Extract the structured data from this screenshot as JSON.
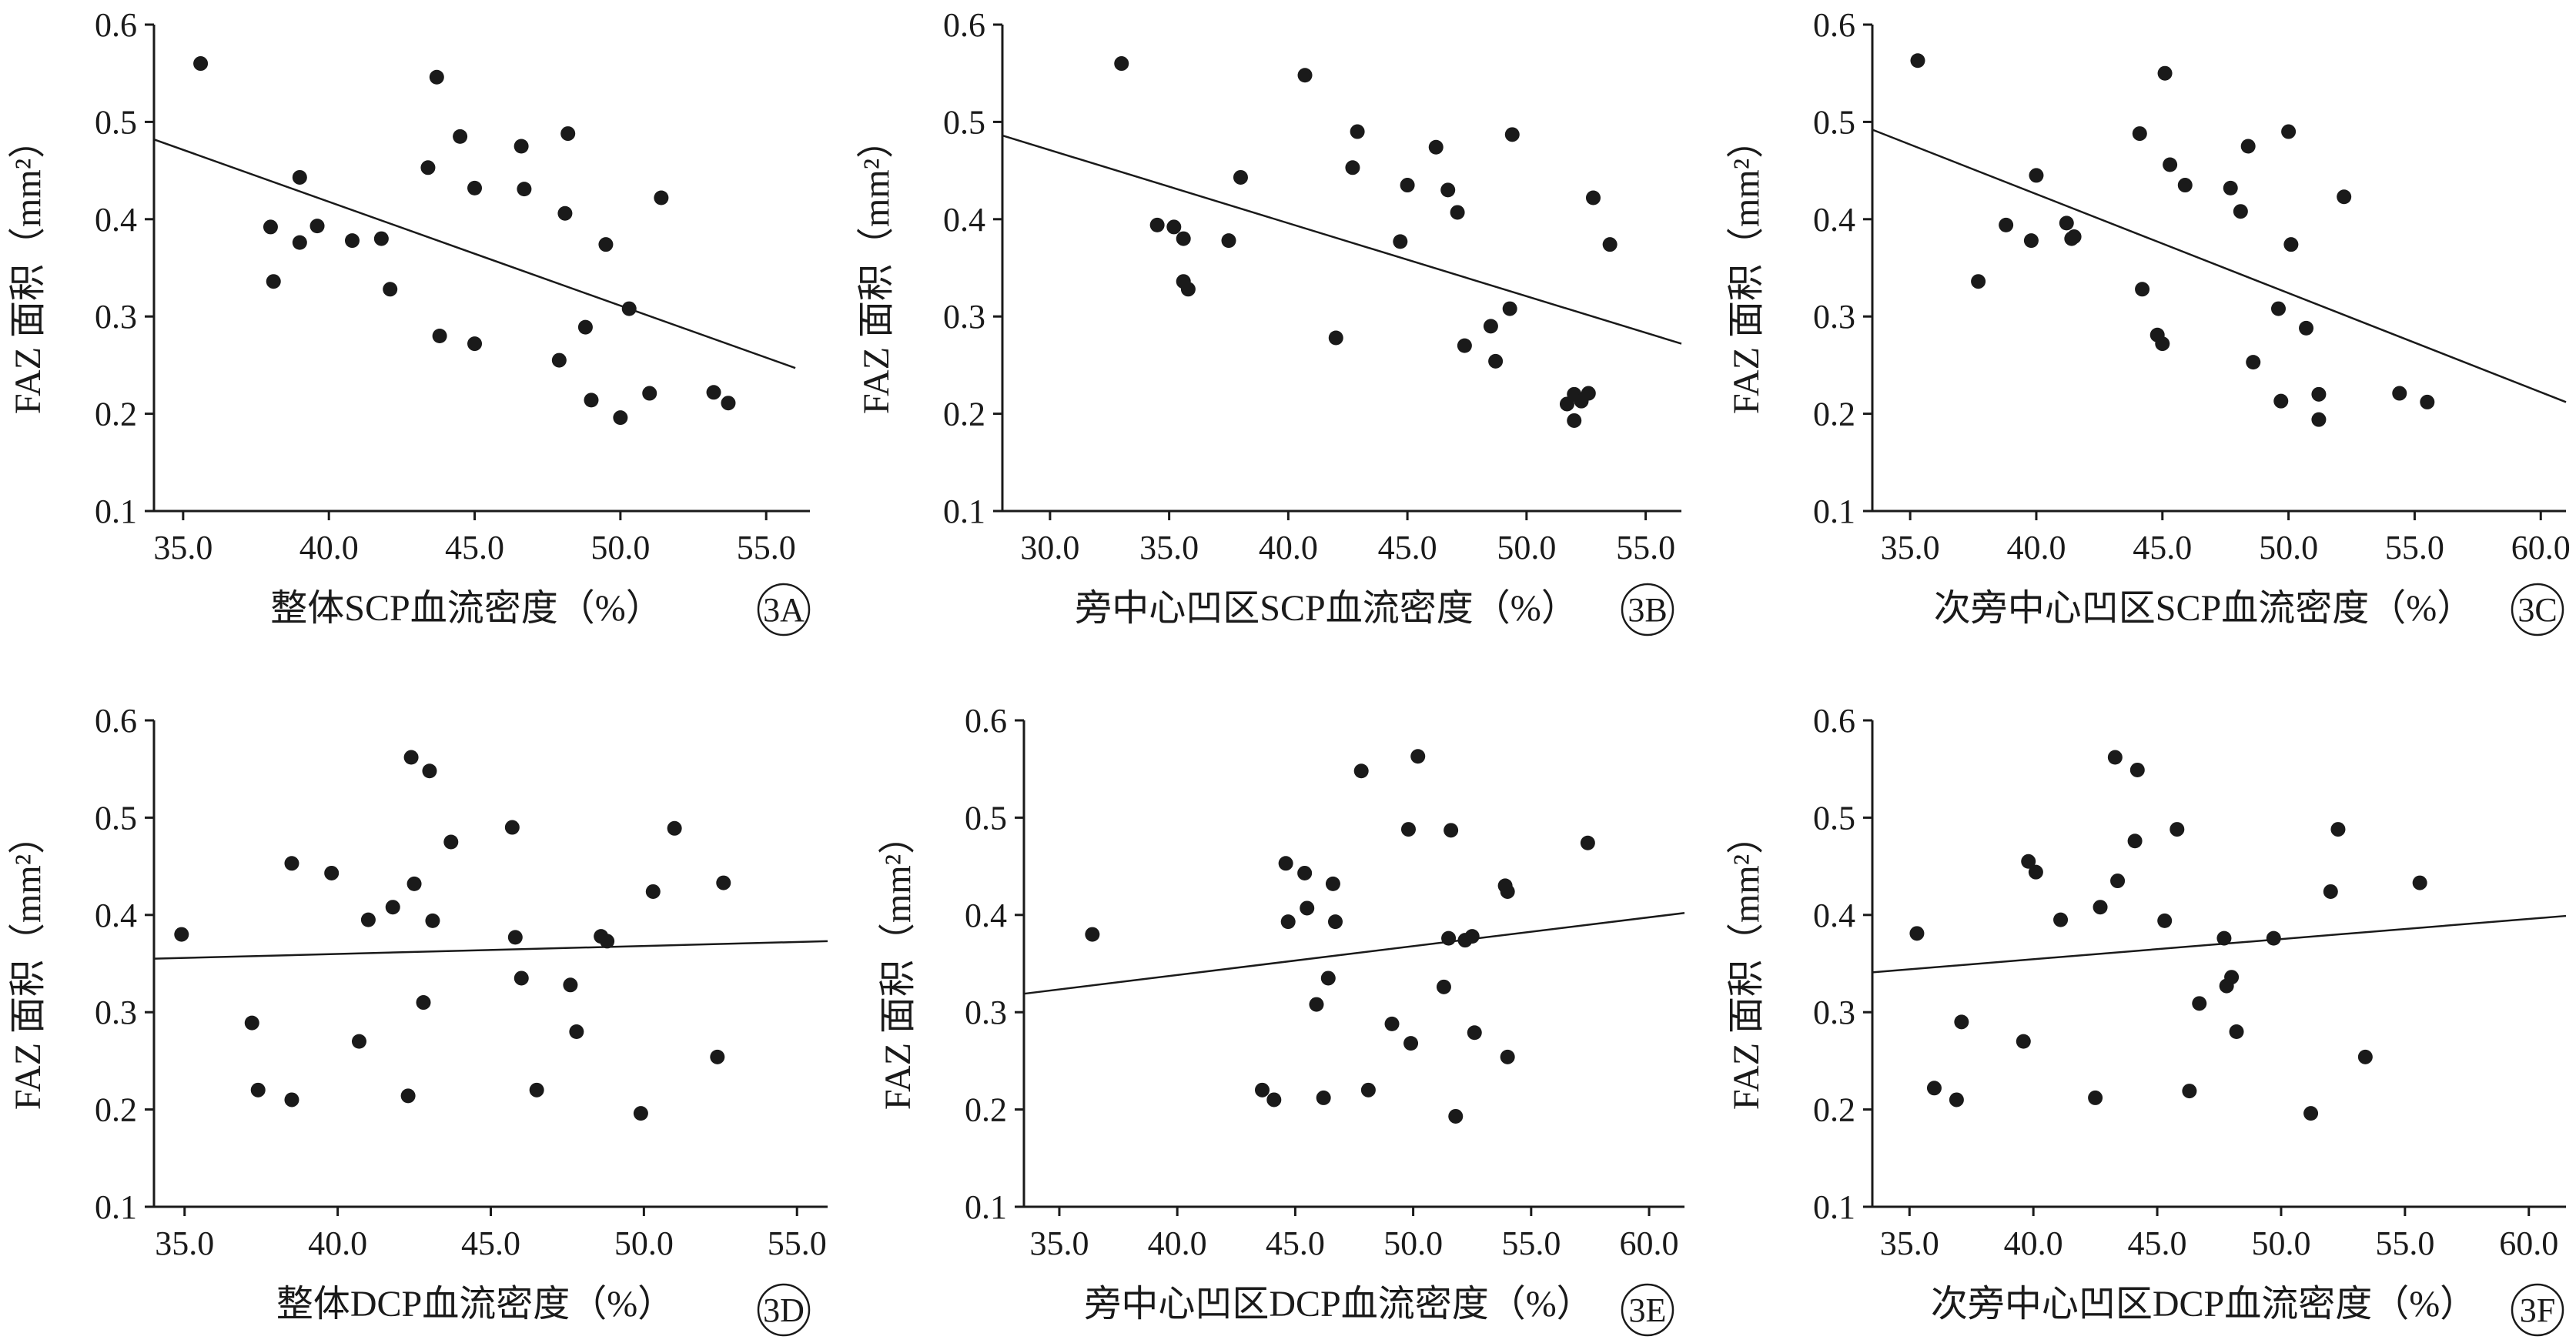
{
  "colors": {
    "ink": "#1a1a1a",
    "background": "#ffffff"
  },
  "chart_data": [
    {
      "panel": "3A",
      "type": "scatter",
      "xlabel": "整体SCP血流密度（%）",
      "ylabel": "FAZ 面积（mm²）",
      "xlim": [
        34.0,
        56.5
      ],
      "ylim": [
        0.1,
        0.6
      ],
      "xticks": [
        35.0,
        40.0,
        45.0,
        50.0,
        55.0
      ],
      "xtick_labels": [
        "35.0",
        "40.0",
        "45.0",
        "50.0",
        "55.0"
      ],
      "yticks": [
        0.1,
        0.2,
        0.3,
        0.4,
        0.5,
        0.6
      ],
      "ytick_labels": [
        "0.1",
        "0.2",
        "0.3",
        "0.4",
        "0.5",
        "0.6"
      ],
      "points": [
        [
          35.6,
          0.56
        ],
        [
          38.0,
          0.392
        ],
        [
          38.1,
          0.336
        ],
        [
          39.0,
          0.443
        ],
        [
          39.0,
          0.376
        ],
        [
          39.6,
          0.393
        ],
        [
          40.8,
          0.378
        ],
        [
          41.8,
          0.38
        ],
        [
          42.1,
          0.328
        ],
        [
          43.4,
          0.453
        ],
        [
          43.7,
          0.546
        ],
        [
          43.8,
          0.28
        ],
        [
          44.5,
          0.485
        ],
        [
          45.0,
          0.432
        ],
        [
          45.0,
          0.272
        ],
        [
          46.6,
          0.475
        ],
        [
          46.7,
          0.431
        ],
        [
          47.9,
          0.255
        ],
        [
          48.1,
          0.406
        ],
        [
          48.2,
          0.488
        ],
        [
          48.8,
          0.289
        ],
        [
          49.0,
          0.214
        ],
        [
          49.5,
          0.374
        ],
        [
          50.0,
          0.196
        ],
        [
          50.3,
          0.308
        ],
        [
          51.0,
          0.221
        ],
        [
          51.4,
          0.422
        ],
        [
          53.2,
          0.222
        ],
        [
          53.7,
          0.211
        ]
      ],
      "trendline": {
        "x": [
          34.0,
          56.0
        ],
        "y": [
          0.482,
          0.247
        ]
      },
      "grid": false,
      "legend": "none"
    },
    {
      "panel": "3B",
      "type": "scatter",
      "xlabel": "旁中心凹区SCP血流密度（%）",
      "ylabel": "FAZ 面积（mm²）",
      "xlim": [
        28.0,
        56.5
      ],
      "ylim": [
        0.1,
        0.6
      ],
      "xticks": [
        30.0,
        35.0,
        40.0,
        45.0,
        50.0,
        55.0
      ],
      "xtick_labels": [
        "30.0",
        "35.0",
        "40.0",
        "45.0",
        "50.0",
        "55.0"
      ],
      "yticks": [
        0.1,
        0.2,
        0.3,
        0.4,
        0.5,
        0.6
      ],
      "ytick_labels": [
        "0.1",
        "0.2",
        "0.3",
        "0.4",
        "0.5",
        "0.6"
      ],
      "points": [
        [
          33.0,
          0.56
        ],
        [
          34.5,
          0.394
        ],
        [
          35.2,
          0.392
        ],
        [
          35.6,
          0.38
        ],
        [
          35.6,
          0.336
        ],
        [
          35.8,
          0.328
        ],
        [
          37.5,
          0.378
        ],
        [
          38.0,
          0.443
        ],
        [
          40.7,
          0.548
        ],
        [
          42.0,
          0.278
        ],
        [
          42.7,
          0.453
        ],
        [
          42.9,
          0.49
        ],
        [
          44.7,
          0.377
        ],
        [
          45.0,
          0.435
        ],
        [
          46.2,
          0.474
        ],
        [
          46.7,
          0.43
        ],
        [
          47.1,
          0.407
        ],
        [
          47.4,
          0.27
        ],
        [
          48.5,
          0.29
        ],
        [
          48.7,
          0.254
        ],
        [
          49.3,
          0.308
        ],
        [
          49.4,
          0.487
        ],
        [
          51.7,
          0.21
        ],
        [
          52.0,
          0.22
        ],
        [
          52.0,
          0.193
        ],
        [
          52.3,
          0.213
        ],
        [
          52.6,
          0.221
        ],
        [
          52.8,
          0.422
        ],
        [
          53.5,
          0.374
        ]
      ],
      "trendline": {
        "x": [
          28.0,
          56.5
        ],
        "y": [
          0.486,
          0.272
        ]
      },
      "grid": false,
      "legend": "none"
    },
    {
      "panel": "3C",
      "type": "scatter",
      "xlabel": "次旁中心凹区SCP血流密度（%）",
      "ylabel": "FAZ 面积（mm²）",
      "xlim": [
        33.5,
        61.0
      ],
      "ylim": [
        0.1,
        0.6
      ],
      "xticks": [
        35.0,
        40.0,
        45.0,
        50.0,
        55.0,
        60.0
      ],
      "xtick_labels": [
        "35.0",
        "40.0",
        "45.0",
        "50.0",
        "55.0",
        "60.0"
      ],
      "yticks": [
        0.1,
        0.2,
        0.3,
        0.4,
        0.5,
        0.6
      ],
      "ytick_labels": [
        "0.1",
        "0.2",
        "0.3",
        "0.4",
        "0.5",
        "0.6"
      ],
      "points": [
        [
          35.3,
          0.563
        ],
        [
          37.7,
          0.336
        ],
        [
          38.8,
          0.394
        ],
        [
          39.8,
          0.378
        ],
        [
          40.0,
          0.445
        ],
        [
          41.2,
          0.396
        ],
        [
          41.4,
          0.38
        ],
        [
          41.5,
          0.382
        ],
        [
          44.1,
          0.488
        ],
        [
          44.2,
          0.328
        ],
        [
          44.8,
          0.281
        ],
        [
          45.0,
          0.272
        ],
        [
          45.1,
          0.55
        ],
        [
          45.3,
          0.456
        ],
        [
          45.9,
          0.435
        ],
        [
          47.7,
          0.432
        ],
        [
          48.1,
          0.408
        ],
        [
          48.4,
          0.475
        ],
        [
          48.6,
          0.253
        ],
        [
          49.6,
          0.308
        ],
        [
          49.7,
          0.213
        ],
        [
          50.0,
          0.49
        ],
        [
          50.1,
          0.374
        ],
        [
          50.7,
          0.288
        ],
        [
          51.2,
          0.22
        ],
        [
          51.2,
          0.194
        ],
        [
          52.2,
          0.423
        ],
        [
          54.4,
          0.221
        ],
        [
          55.5,
          0.212
        ]
      ],
      "trendline": {
        "x": [
          33.5,
          61.0
        ],
        "y": [
          0.492,
          0.212
        ]
      },
      "grid": false,
      "legend": "none"
    },
    {
      "panel": "3D",
      "type": "scatter",
      "xlabel": "整体DCP血流密度（%）",
      "ylabel": "FAZ 面积（mm²）",
      "xlim": [
        34.0,
        56.0
      ],
      "ylim": [
        0.1,
        0.6
      ],
      "xticks": [
        35.0,
        40.0,
        45.0,
        50.0,
        55.0
      ],
      "xtick_labels": [
        "35.0",
        "40.0",
        "45.0",
        "50.0",
        "55.0"
      ],
      "yticks": [
        0.1,
        0.2,
        0.3,
        0.4,
        0.5,
        0.6
      ],
      "ytick_labels": [
        "0.1",
        "0.2",
        "0.3",
        "0.4",
        "0.5",
        "0.6"
      ],
      "points": [
        [
          34.9,
          0.38
        ],
        [
          37.2,
          0.289
        ],
        [
          37.4,
          0.22
        ],
        [
          38.5,
          0.453
        ],
        [
          38.5,
          0.21
        ],
        [
          39.8,
          0.443
        ],
        [
          40.7,
          0.27
        ],
        [
          41.0,
          0.395
        ],
        [
          41.8,
          0.408
        ],
        [
          42.3,
          0.214
        ],
        [
          42.4,
          0.562
        ],
        [
          42.5,
          0.432
        ],
        [
          42.8,
          0.31
        ],
        [
          43.0,
          0.548
        ],
        [
          43.1,
          0.394
        ],
        [
          43.7,
          0.475
        ],
        [
          45.7,
          0.49
        ],
        [
          45.8,
          0.377
        ],
        [
          46.0,
          0.335
        ],
        [
          46.5,
          0.22
        ],
        [
          47.6,
          0.328
        ],
        [
          47.8,
          0.28
        ],
        [
          48.6,
          0.378
        ],
        [
          48.8,
          0.373
        ],
        [
          49.9,
          0.196
        ],
        [
          50.3,
          0.424
        ],
        [
          51.0,
          0.489
        ],
        [
          52.4,
          0.254
        ],
        [
          52.6,
          0.433
        ]
      ],
      "trendline": {
        "x": [
          34.0,
          56.0
        ],
        "y": [
          0.355,
          0.373
        ]
      },
      "grid": false,
      "legend": "none"
    },
    {
      "panel": "3E",
      "type": "scatter",
      "xlabel": "旁中心凹区DCP血流密度（%）",
      "ylabel": "FAZ 面积（mm²）",
      "xlim": [
        33.5,
        61.5
      ],
      "ylim": [
        0.1,
        0.6
      ],
      "xticks": [
        35.0,
        40.0,
        45.0,
        50.0,
        55.0,
        60.0
      ],
      "xtick_labels": [
        "35.0",
        "40.0",
        "45.0",
        "50.0",
        "55.0",
        "60.0"
      ],
      "yticks": [
        0.1,
        0.2,
        0.3,
        0.4,
        0.5,
        0.6
      ],
      "ytick_labels": [
        "0.1",
        "0.2",
        "0.3",
        "0.4",
        "0.5",
        "0.6"
      ],
      "points": [
        [
          36.4,
          0.38
        ],
        [
          43.6,
          0.22
        ],
        [
          44.1,
          0.21
        ],
        [
          44.6,
          0.453
        ],
        [
          44.7,
          0.393
        ],
        [
          45.4,
          0.443
        ],
        [
          45.5,
          0.407
        ],
        [
          45.9,
          0.308
        ],
        [
          46.2,
          0.212
        ],
        [
          46.4,
          0.335
        ],
        [
          46.6,
          0.432
        ],
        [
          46.7,
          0.393
        ],
        [
          47.8,
          0.548
        ],
        [
          48.1,
          0.22
        ],
        [
          49.1,
          0.288
        ],
        [
          49.8,
          0.488
        ],
        [
          49.9,
          0.268
        ],
        [
          50.2,
          0.563
        ],
        [
          51.3,
          0.326
        ],
        [
          51.5,
          0.376
        ],
        [
          51.6,
          0.487
        ],
        [
          51.8,
          0.193
        ],
        [
          52.2,
          0.374
        ],
        [
          52.5,
          0.378
        ],
        [
          52.6,
          0.279
        ],
        [
          53.9,
          0.43
        ],
        [
          54.0,
          0.424
        ],
        [
          54.0,
          0.254
        ],
        [
          57.4,
          0.474
        ]
      ],
      "trendline": {
        "x": [
          33.5,
          61.5
        ],
        "y": [
          0.319,
          0.402
        ]
      },
      "grid": false,
      "legend": "none"
    },
    {
      "panel": "3F",
      "type": "scatter",
      "xlabel": "次旁中心凹区DCP血流密度（%）",
      "ylabel": "FAZ 面积（mm²）",
      "xlim": [
        33.5,
        61.5
      ],
      "ylim": [
        0.1,
        0.6
      ],
      "xticks": [
        35.0,
        40.0,
        45.0,
        50.0,
        55.0,
        60.0
      ],
      "xtick_labels": [
        "35.0",
        "40.0",
        "45.0",
        "50.0",
        "55.0",
        "60.0"
      ],
      "yticks": [
        0.1,
        0.2,
        0.3,
        0.4,
        0.5,
        0.6
      ],
      "ytick_labels": [
        "0.1",
        "0.2",
        "0.3",
        "0.4",
        "0.5",
        "0.6"
      ],
      "points": [
        [
          35.3,
          0.381
        ],
        [
          36.0,
          0.222
        ],
        [
          36.9,
          0.21
        ],
        [
          37.1,
          0.29
        ],
        [
          39.6,
          0.27
        ],
        [
          39.8,
          0.455
        ],
        [
          40.1,
          0.444
        ],
        [
          41.1,
          0.395
        ],
        [
          42.5,
          0.212
        ],
        [
          42.7,
          0.408
        ],
        [
          43.3,
          0.562
        ],
        [
          43.4,
          0.435
        ],
        [
          44.1,
          0.476
        ],
        [
          44.2,
          0.549
        ],
        [
          45.3,
          0.394
        ],
        [
          45.8,
          0.488
        ],
        [
          46.3,
          0.219
        ],
        [
          46.7,
          0.309
        ],
        [
          47.7,
          0.376
        ],
        [
          47.8,
          0.327
        ],
        [
          48.0,
          0.336
        ],
        [
          48.2,
          0.28
        ],
        [
          49.7,
          0.376
        ],
        [
          51.2,
          0.196
        ],
        [
          52.0,
          0.424
        ],
        [
          52.3,
          0.488
        ],
        [
          53.4,
          0.254
        ],
        [
          55.6,
          0.433
        ]
      ],
      "trendline": {
        "x": [
          33.5,
          61.5
        ],
        "y": [
          0.341,
          0.399
        ]
      },
      "grid": false,
      "legend": "none"
    }
  ]
}
